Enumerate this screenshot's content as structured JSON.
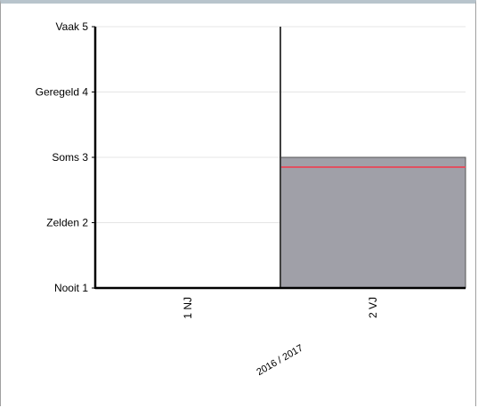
{
  "chart_data": {
    "type": "bar",
    "title": "",
    "xlabel": "",
    "ylabel": "",
    "y_ticks": [
      {
        "value": 1,
        "label": "Nooit 1"
      },
      {
        "value": 2,
        "label": "Zelden 2"
      },
      {
        "value": 3,
        "label": "Soms 3"
      },
      {
        "value": 4,
        "label": "Geregeld 4"
      },
      {
        "value": 5,
        "label": "Vaak 5"
      }
    ],
    "ylim": [
      1,
      5
    ],
    "categories": [
      "1 NJ",
      "2 VJ"
    ],
    "group_label": "2016 / 2017",
    "series": [
      {
        "values": [
          null,
          3.0
        ],
        "color": "#a0a0a8"
      }
    ],
    "reference_line": {
      "values": [
        null,
        2.85
      ],
      "color": "#e05060"
    },
    "grid": true
  }
}
